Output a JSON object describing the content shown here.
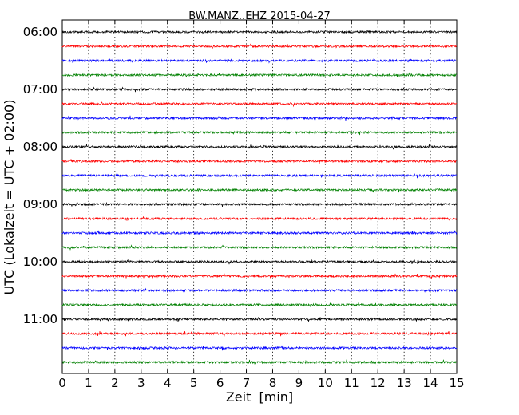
{
  "chart_data": {
    "type": "line",
    "title": "BW.MANZ..EHZ 2015-04-27",
    "xlabel": "Zeit  [min]",
    "ylabel": "UTC (Lokalzeit = UTC + 02:00)",
    "xlim": [
      0,
      15
    ],
    "x_ticks": [
      0,
      1,
      2,
      3,
      4,
      5,
      6,
      7,
      8,
      9,
      10,
      11,
      12,
      13,
      14,
      15
    ],
    "x_tick_labels": [
      "0",
      "1",
      "2",
      "3",
      "4",
      "5",
      "6",
      "7",
      "8",
      "9",
      "10",
      "11",
      "12",
      "13",
      "14",
      "15"
    ],
    "grid": "vertical dotted",
    "trace_interval_minutes": 15,
    "y_tick_labels": [
      "06:00",
      "07:00",
      "08:00",
      "09:00",
      "10:00",
      "11:00"
    ],
    "series": [
      {
        "start": "06:00",
        "color": "#000000"
      },
      {
        "start": "06:15",
        "color": "#ff0000"
      },
      {
        "start": "06:30",
        "color": "#0000ff"
      },
      {
        "start": "06:45",
        "color": "#008000"
      },
      {
        "start": "07:00",
        "color": "#000000"
      },
      {
        "start": "07:15",
        "color": "#ff0000"
      },
      {
        "start": "07:30",
        "color": "#0000ff"
      },
      {
        "start": "07:45",
        "color": "#008000"
      },
      {
        "start": "08:00",
        "color": "#000000"
      },
      {
        "start": "08:15",
        "color": "#ff0000"
      },
      {
        "start": "08:30",
        "color": "#0000ff"
      },
      {
        "start": "08:45",
        "color": "#008000"
      },
      {
        "start": "09:00",
        "color": "#000000"
      },
      {
        "start": "09:15",
        "color": "#ff0000"
      },
      {
        "start": "09:30",
        "color": "#0000ff"
      },
      {
        "start": "09:45",
        "color": "#008000"
      },
      {
        "start": "10:00",
        "color": "#000000"
      },
      {
        "start": "10:15",
        "color": "#ff0000"
      },
      {
        "start": "10:30",
        "color": "#0000ff"
      },
      {
        "start": "10:45",
        "color": "#008000"
      },
      {
        "start": "11:00",
        "color": "#000000"
      },
      {
        "start": "11:15",
        "color": "#ff0000"
      },
      {
        "start": "11:30",
        "color": "#0000ff"
      },
      {
        "start": "11:45",
        "color": "#008000"
      }
    ]
  }
}
